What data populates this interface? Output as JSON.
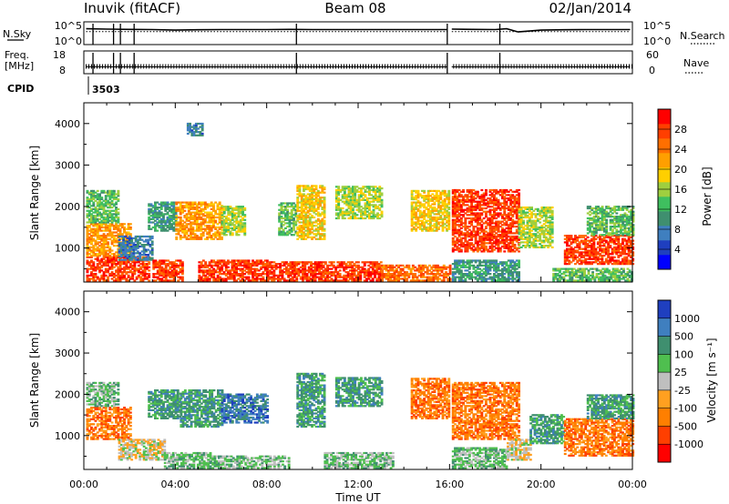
{
  "header": {
    "station": "Inuvik (fitACF)",
    "beam": "Beam 08",
    "date": "02/Jan/2014"
  },
  "side_labels": {
    "nsky": "N.Sky",
    "nsearch": "N.Search",
    "freq_line1": "Freq.",
    "freq_line2": "[MHz]",
    "nave": "Nave",
    "cpid": "CPID",
    "cpid_value": "3503"
  },
  "colors": {
    "power_scale": [
      "#0000ff",
      "#1f3fbf",
      "#3f7fbf",
      "#3f8f6f",
      "#3fbf5f",
      "#9fcf3f",
      "#ffcf00",
      "#ff9f00",
      "#ff6f00",
      "#ff3f00",
      "#ff0000"
    ],
    "velocity_scale": [
      "#1f3fbf",
      "#3f7fbf",
      "#3f8f6f",
      "#4fbf4f",
      "#bfbfbf",
      "#ffa020",
      "#ff7f00",
      "#ff3f00",
      "#ff0000"
    ]
  },
  "chart_data": [
    {
      "type": "line",
      "title": "",
      "ylabel_left": "N.Sky",
      "ylabel_right": "N.Search",
      "y_ticks_left": [
        "10^5",
        "10^0"
      ],
      "y_ticks_right": [
        "10^5",
        "10^0"
      ],
      "yscale": "log",
      "x_range_hours": [
        0,
        24
      ],
      "data_gap_hours": [
        [
          15.95,
          16.05
        ]
      ],
      "series": [
        {
          "name": "N.Sky",
          "x": [
            0.1,
            1,
            2,
            3,
            4,
            5,
            6,
            7,
            8,
            9,
            10,
            11,
            12,
            13,
            14,
            15,
            15.9,
            16.1,
            17,
            18,
            18.5,
            19,
            20,
            21,
            22,
            23,
            23.9
          ],
          "y": [
            3000,
            2500,
            2200,
            2000,
            1500,
            1800,
            2000,
            2000,
            2000,
            2200,
            2000,
            2000,
            2000,
            2000,
            2000,
            2000,
            2000,
            2500,
            2200,
            2000,
            3000,
            600,
            1500,
            1800,
            2000,
            2000,
            2000
          ]
        },
        {
          "name": "N.Search",
          "x": [
            0.1,
            4,
            8,
            12,
            15.9,
            16.1,
            18,
            20,
            23.9
          ],
          "y": [
            700,
            700,
            700,
            700,
            700,
            700,
            700,
            700,
            700
          ]
        }
      ]
    },
    {
      "type": "line",
      "title": "",
      "ylabel_left": "Freq. [MHz]",
      "ylabel_right": "Nave",
      "y_ticks_left": [
        "18",
        "8"
      ],
      "y_ticks_right": [
        "60",
        "0"
      ],
      "ylim_left": [
        8,
        18
      ],
      "ylim_right": [
        0,
        60
      ],
      "x_range_hours": [
        0,
        24
      ],
      "data_gap_hours": [
        [
          15.95,
          16.05
        ]
      ],
      "series": [
        {
          "name": "Freq.",
          "x": [
            0.1,
            15.9,
            16.1,
            23.9
          ],
          "y": [
            11,
            11,
            11,
            11
          ]
        },
        {
          "name": "Nave",
          "x": [
            0.1,
            15.9,
            16.1,
            23.9
          ],
          "y": [
            18,
            18,
            18,
            18
          ]
        }
      ]
    },
    {
      "type": "heatmap",
      "title": "",
      "xlabel": "",
      "ylabel": "Slant Range [km]",
      "x_range_hours": [
        0,
        24
      ],
      "ylim": [
        180,
        4500
      ],
      "y_ticks": [
        "1000",
        "2000",
        "3000",
        "4000"
      ],
      "colorbar_label": "Power [dB]",
      "colorbar_ticks": [
        "4",
        "8",
        "12",
        "16",
        "20",
        "24",
        "28"
      ],
      "colorbar_range": [
        0,
        32
      ],
      "regions": [
        {
          "t0": 0.1,
          "t1": 2.8,
          "r0": 200,
          "r1": 800,
          "level": 9
        },
        {
          "t0": 0.1,
          "t1": 2.0,
          "r0": 800,
          "r1": 1600,
          "level": 7
        },
        {
          "t0": 0.1,
          "t1": 1.5,
          "r0": 1600,
          "r1": 2400,
          "level": 4
        },
        {
          "t0": 1.5,
          "t1": 3.0,
          "r0": 700,
          "r1": 1300,
          "level": 2
        },
        {
          "t0": 3.0,
          "t1": 4.3,
          "r0": 200,
          "r1": 700,
          "level": 9
        },
        {
          "t0": 2.8,
          "t1": 4.0,
          "r0": 1400,
          "r1": 2100,
          "level": 3
        },
        {
          "t0": 4.0,
          "t1": 6.0,
          "r0": 1200,
          "r1": 2100,
          "level": 7
        },
        {
          "t0": 4.5,
          "t1": 5.2,
          "r0": 3700,
          "r1": 4000,
          "level": 2
        },
        {
          "t0": 5.0,
          "t1": 8.0,
          "r0": 200,
          "r1": 700,
          "level": 9
        },
        {
          "t0": 6.0,
          "t1": 7.0,
          "r0": 1300,
          "r1": 2000,
          "level": 5
        },
        {
          "t0": 8.0,
          "t1": 13.0,
          "r0": 200,
          "r1": 650,
          "level": 9
        },
        {
          "t0": 8.5,
          "t1": 9.3,
          "r0": 1300,
          "r1": 2100,
          "level": 4
        },
        {
          "t0": 9.3,
          "t1": 10.5,
          "r0": 1200,
          "r1": 2500,
          "level": 6
        },
        {
          "t0": 11.0,
          "t1": 13.0,
          "r0": 1700,
          "r1": 2500,
          "level": 5
        },
        {
          "t0": 13.0,
          "t1": 16.0,
          "r0": 200,
          "r1": 600,
          "level": 8
        },
        {
          "t0": 14.3,
          "t1": 16.0,
          "r0": 1400,
          "r1": 2400,
          "level": 6
        },
        {
          "t0": 16.1,
          "t1": 19.0,
          "r0": 900,
          "r1": 2400,
          "level": 9
        },
        {
          "t0": 16.1,
          "t1": 19.0,
          "r0": 200,
          "r1": 700,
          "level": 3
        },
        {
          "t0": 19.0,
          "t1": 20.5,
          "r0": 1000,
          "r1": 2000,
          "level": 5
        },
        {
          "t0": 20.5,
          "t1": 24.0,
          "r0": 200,
          "r1": 500,
          "level": 4
        },
        {
          "t0": 21.0,
          "t1": 24.0,
          "r0": 600,
          "r1": 1300,
          "level": 9
        },
        {
          "t0": 22.0,
          "t1": 24.0,
          "r0": 1300,
          "r1": 2000,
          "level": 4
        }
      ]
    },
    {
      "type": "heatmap",
      "title": "",
      "xlabel": "Time UT",
      "ylabel": "Slant Range [km]",
      "x_range_hours": [
        0,
        24
      ],
      "x_ticks": [
        "00:00",
        "04:00",
        "08:00",
        "12:00",
        "16:00",
        "20:00",
        "00:00"
      ],
      "ylim": [
        180,
        4500
      ],
      "y_ticks": [
        "1000",
        "2000",
        "3000",
        "4000"
      ],
      "colorbar_label": "Velocity [m s⁻¹]",
      "colorbar_ticks": [
        "1000",
        "500",
        "100",
        "25",
        "-25",
        "-100",
        "-500",
        "-1000"
      ],
      "regions": [
        {
          "t0": 0.1,
          "t1": 2.0,
          "r0": 900,
          "r1": 1700,
          "level": 6
        },
        {
          "t0": 0.1,
          "t1": 1.5,
          "r0": 1700,
          "r1": 2300,
          "level": 3
        },
        {
          "t0": 1.5,
          "t1": 3.5,
          "r0": 400,
          "r1": 900,
          "level": 4
        },
        {
          "t0": 3.5,
          "t1": 5.5,
          "r0": 200,
          "r1": 600,
          "level": 3
        },
        {
          "t0": 2.8,
          "t1": 4.2,
          "r0": 1400,
          "r1": 2100,
          "level": 2
        },
        {
          "t0": 4.2,
          "t1": 6.0,
          "r0": 1200,
          "r1": 2100,
          "level": 2
        },
        {
          "t0": 6.0,
          "t1": 8.0,
          "r0": 1300,
          "r1": 2000,
          "level": 1
        },
        {
          "t0": 5.5,
          "t1": 9.0,
          "r0": 200,
          "r1": 500,
          "level": 3
        },
        {
          "t0": 9.3,
          "t1": 10.5,
          "r0": 1200,
          "r1": 2500,
          "level": 2
        },
        {
          "t0": 10.5,
          "t1": 13.5,
          "r0": 200,
          "r1": 600,
          "level": 3
        },
        {
          "t0": 11.0,
          "t1": 13.0,
          "r0": 1700,
          "r1": 2400,
          "level": 2
        },
        {
          "t0": 14.3,
          "t1": 16.0,
          "r0": 1400,
          "r1": 2400,
          "level": 6
        },
        {
          "t0": 16.1,
          "t1": 19.0,
          "r0": 900,
          "r1": 2300,
          "level": 6
        },
        {
          "t0": 16.1,
          "t1": 18.5,
          "r0": 200,
          "r1": 700,
          "level": 3
        },
        {
          "t0": 18.5,
          "t1": 19.5,
          "r0": 400,
          "r1": 900,
          "level": 4
        },
        {
          "t0": 19.5,
          "t1": 21.0,
          "r0": 800,
          "r1": 1500,
          "level": 2
        },
        {
          "t0": 21.0,
          "t1": 24.0,
          "r0": 500,
          "r1": 1400,
          "level": 6
        },
        {
          "t0": 22.0,
          "t1": 24.0,
          "r0": 1400,
          "r1": 2000,
          "level": 2
        }
      ]
    }
  ]
}
